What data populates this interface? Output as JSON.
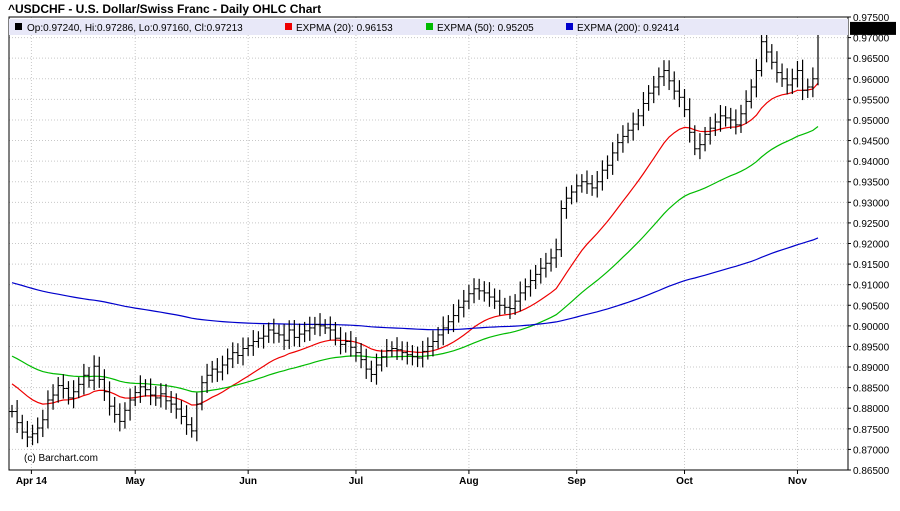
{
  "header": {
    "title": "^USDCHF - U.S. Dollar/Swiss Franc - Daily OHLC Chart"
  },
  "legend": {
    "ohlc": "Op:0.97240, Hi:0.97286, Lo:0.97160, Cl:0.97213",
    "ema20": "EXPMA (20): 0.96153",
    "ema50": "EXPMA (50): 0.95205",
    "ema200": "EXPMA (200): 0.92414"
  },
  "watermark": "(c) Barchart.com",
  "last_price_label": "0.97213",
  "colors": {
    "ema20": "#ee0000",
    "ema50": "#00bb00",
    "ema200": "#0000cc",
    "bars": "#000000",
    "last_price_box": "#000000",
    "legend_bg": "#e8e8f8"
  },
  "chart_data": {
    "type": "ohlc",
    "title": "^USDCHF - U.S. Dollar/Swiss Franc - Daily OHLC Chart",
    "x_tick_labels": [
      "Apr 14",
      "May",
      "Jun",
      "Jul",
      "Aug",
      "Sep",
      "Oct",
      "Nov"
    ],
    "y_tick_labels": [
      "0.87000",
      "0.87500",
      "0.88000",
      "0.88500",
      "0.89000",
      "0.89500",
      "0.90000",
      "0.90500",
      "0.91000",
      "0.91500",
      "0.92000",
      "0.92500",
      "0.93000",
      "0.93500",
      "0.94000",
      "0.94500",
      "0.95000",
      "0.95500",
      "0.96000",
      "0.96500",
      "0.97000",
      "0.97500",
      "0.86500"
    ],
    "ylim": [
      0.865,
      0.975
    ],
    "grid": true,
    "closes": [
      0.8792,
      0.8765,
      0.8742,
      0.873,
      0.8738,
      0.8752,
      0.8772,
      0.882,
      0.8832,
      0.8855,
      0.8848,
      0.8825,
      0.884,
      0.8858,
      0.888,
      0.8868,
      0.8902,
      0.887,
      0.884,
      0.8805,
      0.8785,
      0.8768,
      0.8795,
      0.882,
      0.8838,
      0.8852,
      0.8845,
      0.8832,
      0.8825,
      0.8835,
      0.8818,
      0.881,
      0.8798,
      0.878,
      0.876,
      0.8745,
      0.881,
      0.8862,
      0.888,
      0.8895,
      0.8888,
      0.8905,
      0.892,
      0.8935,
      0.8928,
      0.8945,
      0.8952,
      0.8962,
      0.897,
      0.8975,
      0.899,
      0.8982,
      0.8978,
      0.8965,
      0.899,
      0.8972,
      0.898,
      0.8988,
      0.8995,
      0.9003,
      0.9,
      0.8995,
      0.899,
      0.897,
      0.8955,
      0.8962,
      0.8948,
      0.8935,
      0.8918,
      0.8895,
      0.8882,
      0.8905,
      0.8925,
      0.894,
      0.8945,
      0.8942,
      0.8935,
      0.893,
      0.8925,
      0.8922,
      0.8938,
      0.895,
      0.8962,
      0.8978,
      0.8995,
      0.901,
      0.9025,
      0.9045,
      0.906,
      0.9078,
      0.909,
      0.9085,
      0.908,
      0.907,
      0.906,
      0.905,
      0.9045,
      0.9042,
      0.906,
      0.908,
      0.9095,
      0.911,
      0.9125,
      0.914,
      0.9152,
      0.9165,
      0.9185,
      0.9285,
      0.931,
      0.9325,
      0.934,
      0.935,
      0.9345,
      0.9335,
      0.935,
      0.9378,
      0.939,
      0.942,
      0.9445,
      0.946,
      0.9475,
      0.949,
      0.951,
      0.954,
      0.9565,
      0.958,
      0.9605,
      0.962,
      0.9595,
      0.957,
      0.9555,
      0.9525,
      0.947,
      0.943,
      0.944,
      0.9465,
      0.948,
      0.9495,
      0.951,
      0.9505,
      0.95,
      0.9488,
      0.9515,
      0.9545,
      0.958,
      0.962,
      0.969,
      0.9665,
      0.964,
      0.9615,
      0.96,
      0.9585,
      0.96,
      0.962,
      0.9572,
      0.958,
      0.96,
      0.9721
    ],
    "series": [
      {
        "name": "EXPMA (20)",
        "last": 0.96153
      },
      {
        "name": "EXPMA (50)",
        "last": 0.95205
      },
      {
        "name": "EXPMA (200)",
        "last": 0.92414
      }
    ]
  }
}
